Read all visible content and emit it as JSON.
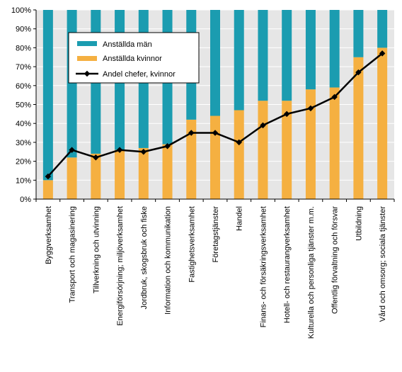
{
  "chart_data": {
    "type": "bar",
    "stacked": true,
    "categories": [
      "Byggverksamhet",
      "Transport och magasinering",
      "Tillverkning och utvinning",
      "Energiförsörjning; miljöverksamhet",
      "Jordbruk, skogsbruk och fiske",
      "Information och kommunikation",
      "Fastighetsverksamhet",
      "Företagstjänster",
      "Handel",
      "Finans- och försäkringsverksamhet",
      "Hotell- och restaurangverksamhet",
      "Kulturella och personliga tjänster m.m.",
      "Offentlig förvaltning och försvar",
      "Utbildning",
      "Vård och omsorg; sociala tjänster"
    ],
    "series": [
      {
        "name": "Anställda män",
        "kind": "bar",
        "color": "#1b9cb0",
        "values": [
          90,
          78,
          76,
          74,
          73,
          71,
          58,
          56,
          53,
          48,
          48,
          42,
          41,
          25,
          20
        ]
      },
      {
        "name": "Anställda kvinnor",
        "kind": "bar",
        "color": "#f5b041",
        "values": [
          10,
          22,
          24,
          26,
          27,
          29,
          42,
          44,
          47,
          52,
          52,
          58,
          59,
          75,
          80
        ]
      },
      {
        "name": "Andel chefer, kvinnor",
        "kind": "line",
        "color": "#000000",
        "values": [
          12,
          26,
          22,
          26,
          25,
          28,
          35,
          35,
          30,
          39,
          45,
          48,
          54,
          67,
          77
        ]
      }
    ],
    "yticks": [
      "0%",
      "10%",
      "20%",
      "30%",
      "40%",
      "50%",
      "60%",
      "70%",
      "80%",
      "90%",
      "100%"
    ],
    "ylim": [
      0,
      100
    ],
    "legend_position": "top-left",
    "plot_background": "#e6e6e6",
    "grid": true
  }
}
